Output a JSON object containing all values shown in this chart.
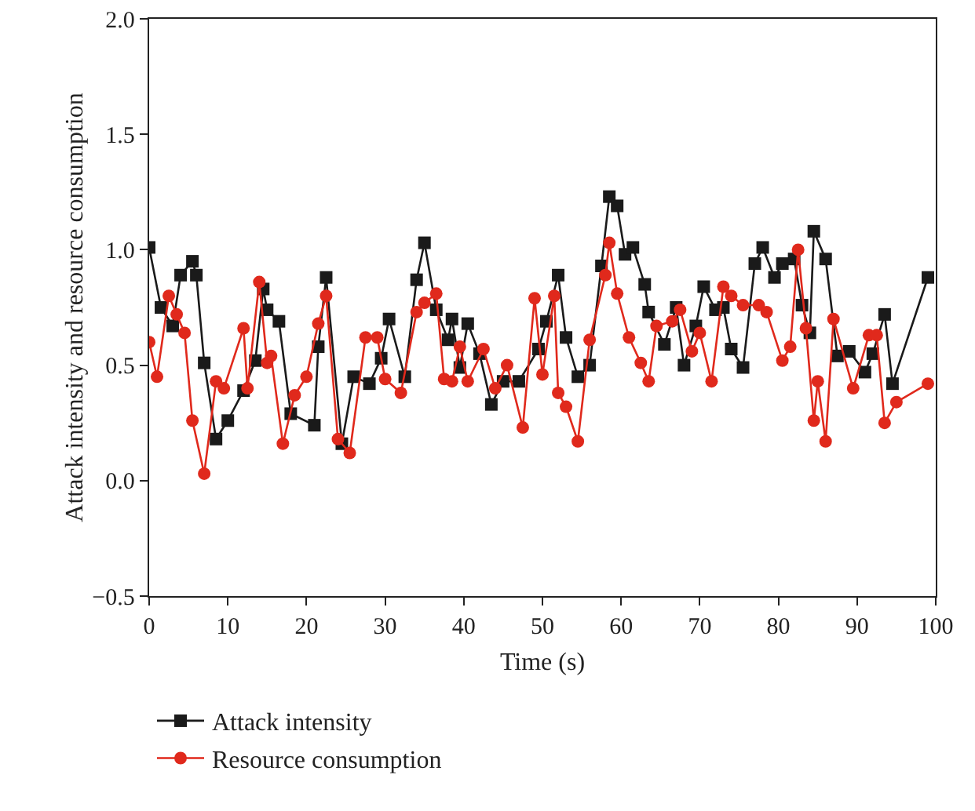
{
  "chart_data": {
    "type": "line",
    "xlabel": "Time (s)",
    "ylabel": "Attack intensity and resource consumption",
    "xlim": [
      0,
      100
    ],
    "xticks": [
      0,
      10,
      20,
      30,
      40,
      50,
      60,
      70,
      80,
      90,
      100
    ],
    "ylim": [
      -0.5,
      2.0
    ],
    "yticks": [
      {
        "value": -0.5,
        "label": "−0.5"
      },
      {
        "value": 0,
        "label": "0.0"
      },
      {
        "value": 0.5,
        "label": "0.5"
      },
      {
        "value": 1,
        "label": "1.0"
      },
      {
        "value": 1.5,
        "label": "1.5"
      },
      {
        "value": 2,
        "label": "2.0"
      }
    ],
    "grid": false,
    "legend": "bottom left",
    "line_style": "solid",
    "series": [
      {
        "name": "Attack intensity",
        "color": "#1a1a1a",
        "marker": "square",
        "x": [
          0,
          1.5,
          3,
          4,
          5.5,
          6,
          7,
          8.5,
          10,
          12,
          13.5,
          14.5,
          15,
          16.5,
          18,
          21,
          21.5,
          22.5,
          24.5,
          26,
          28,
          29.5,
          30.5,
          32.5,
          34,
          35,
          36.5,
          38,
          38.5,
          39.5,
          40.5,
          42,
          43.5,
          45,
          47,
          49.5,
          50.5,
          52,
          53,
          54.5,
          56,
          57.5,
          58.5,
          59.5,
          60.5,
          61.5,
          63,
          63.5,
          65.5,
          67,
          68,
          69.5,
          70.5,
          72,
          73,
          74,
          75.5,
          77,
          78,
          79.5,
          80.5,
          82,
          83,
          84,
          84.5,
          86,
          87.5,
          89,
          91,
          92,
          93.5,
          94.5,
          99
        ],
        "values": [
          1.01,
          0.75,
          0.67,
          0.89,
          0.95,
          0.89,
          0.51,
          0.18,
          0.26,
          0.39,
          0.52,
          0.83,
          0.74,
          0.69,
          0.29,
          0.24,
          0.58,
          0.88,
          0.16,
          0.45,
          0.42,
          0.53,
          0.7,
          0.45,
          0.87,
          1.03,
          0.74,
          0.61,
          0.7,
          0.49,
          0.68,
          0.55,
          0.33,
          0.43,
          0.43,
          0.57,
          0.69,
          0.89,
          0.62,
          0.45,
          0.5,
          0.93,
          1.23,
          1.19,
          0.98,
          1.01,
          0.85,
          0.73,
          0.59,
          0.75,
          0.5,
          0.67,
          0.84,
          0.74,
          0.75,
          0.57,
          0.49,
          0.94,
          1.01,
          0.88,
          0.94,
          0.96,
          0.76,
          0.64,
          1.08,
          0.96,
          0.54,
          0.56,
          0.47,
          0.55,
          0.72,
          0.42,
          0.88
        ]
      },
      {
        "name": "Resource consumption",
        "color": "#e0291c",
        "marker": "circle",
        "x": [
          0,
          1,
          2.5,
          3.5,
          4.5,
          5.5,
          7,
          8.5,
          9.5,
          12,
          12.5,
          14,
          15,
          15.5,
          17,
          18.5,
          20,
          21.5,
          22.5,
          24,
          25.5,
          27.5,
          29,
          30,
          32,
          34,
          35,
          36.5,
          37.5,
          38.5,
          39.5,
          40.5,
          42.5,
          44,
          45.5,
          47.5,
          49,
          50,
          51.5,
          52,
          53,
          54.5,
          56,
          58,
          58.5,
          59.5,
          61,
          62.5,
          63.5,
          64.5,
          66.5,
          67.5,
          69,
          70,
          71.5,
          73,
          74,
          75.5,
          77.5,
          78.5,
          80.5,
          81.5,
          82.5,
          83.5,
          84.5,
          85,
          86,
          87,
          89.5,
          91.5,
          92.5,
          93.5,
          95,
          99
        ],
        "values": [
          0.6,
          0.45,
          0.8,
          0.72,
          0.64,
          0.26,
          0.03,
          0.43,
          0.4,
          0.66,
          0.4,
          0.86,
          0.51,
          0.54,
          0.16,
          0.37,
          0.45,
          0.68,
          0.8,
          0.18,
          0.12,
          0.62,
          0.62,
          0.44,
          0.38,
          0.73,
          0.77,
          0.81,
          0.44,
          0.43,
          0.58,
          0.43,
          0.57,
          0.4,
          0.5,
          0.23,
          0.79,
          0.46,
          0.8,
          0.38,
          0.32,
          0.17,
          0.61,
          0.89,
          1.03,
          0.81,
          0.62,
          0.51,
          0.43,
          0.67,
          0.69,
          0.74,
          0.56,
          0.64,
          0.43,
          0.84,
          0.8,
          0.76,
          0.76,
          0.73,
          0.52,
          0.58,
          1.0,
          0.66,
          0.26,
          0.43,
          0.17,
          0.7,
          0.4,
          0.63,
          0.63,
          0.25,
          0.34,
          0.42
        ]
      }
    ]
  }
}
